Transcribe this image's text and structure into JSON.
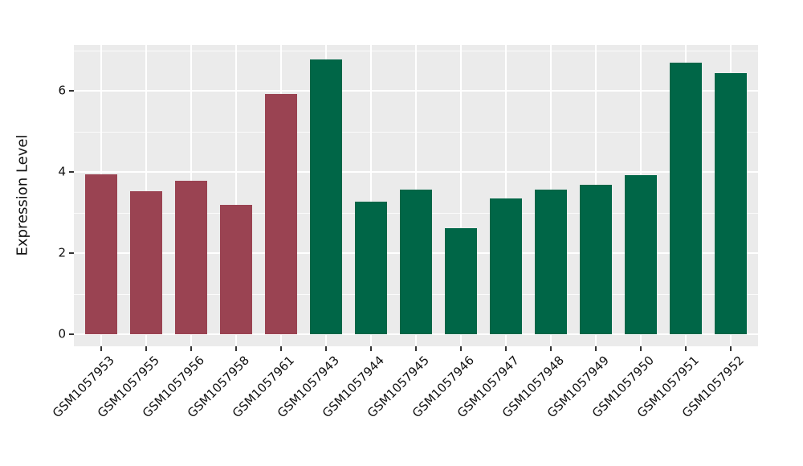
{
  "figure": {
    "background": "#ffffff",
    "panel_background": "#ebebeb",
    "grid_major_color": "#ffffff",
    "grid_minor_color": "rgba(255,255,255,0.8)",
    "tick_mark_color": "#333333",
    "text_color": "#111111"
  },
  "chart_data": {
    "type": "bar",
    "title": "",
    "xlabel": "",
    "ylabel": "Expression Level",
    "categories": [
      "GSM1057953",
      "GSM1057955",
      "GSM1057956",
      "GSM1057958",
      "GSM1057961",
      "GSM1057943",
      "GSM1057944",
      "GSM1057945",
      "GSM1057946",
      "GSM1057947",
      "GSM1057948",
      "GSM1057949",
      "GSM1057950",
      "GSM1057951",
      "GSM1057952"
    ],
    "values": [
      3.95,
      3.53,
      3.78,
      3.19,
      5.92,
      6.77,
      3.27,
      3.56,
      2.61,
      3.35,
      3.56,
      3.69,
      3.93,
      6.69,
      6.44
    ],
    "bar_colors": [
      "#9a4352",
      "#9a4352",
      "#9a4352",
      "#9a4352",
      "#9a4352",
      "#006647",
      "#006647",
      "#006647",
      "#006647",
      "#006647",
      "#006647",
      "#006647",
      "#006647",
      "#006647",
      "#006647"
    ],
    "group_colors": {
      "left_group": "#9a4352",
      "right_group": "#006647"
    },
    "yticks": [
      0,
      2,
      4,
      6
    ],
    "yticks_minor": [
      1,
      3,
      5,
      7
    ],
    "ylim": [
      -0.3,
      7.13
    ],
    "grid": "white major+minor horizontal lines and white vertical lines at bar centers on gray panel",
    "legend": null,
    "x_tick_label_rotation": 45
  }
}
